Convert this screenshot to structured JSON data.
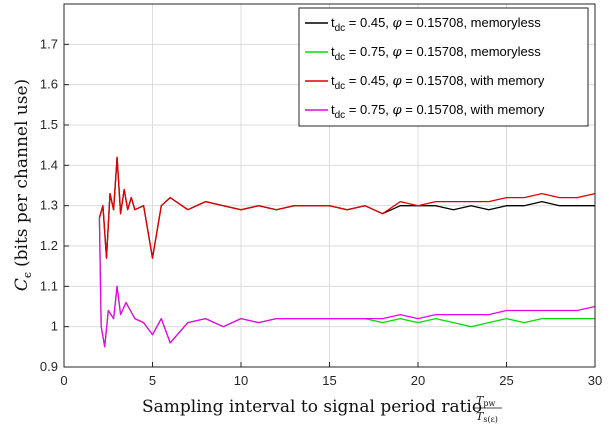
{
  "chart_data": {
    "type": "line",
    "title": "",
    "xlabel": "Sampling interval to signal period ratio",
    "xlabel_fraction": {
      "numerator": "T",
      "numerator_sub": "pw",
      "denominator": "T",
      "denominator_sub": "s(ε)"
    },
    "ylabel": "C",
    "ylabel_sub": "ϵ",
    "ylabel_rest": "(bits per channel use)",
    "xlim": [
      0,
      30
    ],
    "ylim": [
      0.9,
      1.8
    ],
    "xticks": [
      0,
      5,
      10,
      15,
      20,
      25,
      30
    ],
    "xtick_labels": [
      "0",
      "5",
      "10",
      "15",
      "20",
      "25",
      "30"
    ],
    "yticks": [
      0.9,
      1.0,
      1.1,
      1.2,
      1.3,
      1.4,
      1.5,
      1.6,
      1.7
    ],
    "ytick_labels": [
      "0.9",
      "1",
      "1.1",
      "1.2",
      "1.3",
      "1.4",
      "1.5",
      "1.6",
      "1.7"
    ],
    "grid": true,
    "legend_position": "top-right",
    "series": [
      {
        "name": "t_dc = 0.45, φ = 0.15708, memoryless",
        "legend": {
          "t": "t",
          "sub": "dc",
          "eq1": " = 0.45, ",
          "phi": "φ",
          "rest": " = 0.15708, memoryless"
        },
        "color": "#000000",
        "x": [
          2.0,
          2.2,
          2.4,
          2.6,
          2.8,
          3.0,
          3.2,
          3.4,
          3.6,
          3.8,
          4.0,
          4.5,
          5.0,
          5.5,
          6.0,
          7.0,
          8.0,
          9.0,
          10.0,
          11.0,
          12.0,
          13.0,
          14.0,
          15.0,
          16.0,
          17.0,
          18.0,
          19.0,
          20.0,
          21.0,
          22.0,
          23.0,
          24.0,
          25.0,
          26.0,
          27.0,
          28.0,
          29.0,
          30.0
        ],
        "y": [
          1.27,
          1.3,
          1.17,
          1.33,
          1.29,
          1.42,
          1.28,
          1.34,
          1.29,
          1.32,
          1.29,
          1.3,
          1.17,
          1.3,
          1.32,
          1.29,
          1.31,
          1.3,
          1.29,
          1.3,
          1.29,
          1.3,
          1.3,
          1.3,
          1.29,
          1.3,
          1.28,
          1.3,
          1.3,
          1.3,
          1.29,
          1.3,
          1.29,
          1.3,
          1.3,
          1.31,
          1.3,
          1.3,
          1.3
        ]
      },
      {
        "name": "t_dc = 0.75, φ = 0.15708, memoryless",
        "legend": {
          "t": "t",
          "sub": "dc",
          "eq1": " = 0.75, ",
          "phi": "φ",
          "rest": " = 0.15708, memoryless"
        },
        "color": "#00dd00",
        "x": [
          2.0,
          2.1,
          2.3,
          2.5,
          2.8,
          3.0,
          3.2,
          3.5,
          4.0,
          4.5,
          5.0,
          5.5,
          6.0,
          7.0,
          8.0,
          9.0,
          10.0,
          11.0,
          12.0,
          13.0,
          14.0,
          15.0,
          16.0,
          17.0,
          18.0,
          19.0,
          20.0,
          21.0,
          22.0,
          23.0,
          24.0,
          25.0,
          26.0,
          27.0,
          28.0,
          29.0,
          30.0
        ],
        "y": [
          1.27,
          1.0,
          0.95,
          1.04,
          1.02,
          1.1,
          1.03,
          1.06,
          1.02,
          1.01,
          0.98,
          1.02,
          0.96,
          1.01,
          1.02,
          1.0,
          1.02,
          1.01,
          1.02,
          1.02,
          1.02,
          1.02,
          1.02,
          1.02,
          1.01,
          1.02,
          1.01,
          1.02,
          1.01,
          1.0,
          1.01,
          1.02,
          1.01,
          1.02,
          1.02,
          1.02,
          1.02
        ]
      },
      {
        "name": "t_dc = 0.45, φ = 0.15708, with memory",
        "legend": {
          "t": "t",
          "sub": "dc",
          "eq1": " = 0.45, ",
          "phi": "φ",
          "rest": " = 0.15708, with memory"
        },
        "color": "#e00000",
        "x": [
          2.0,
          2.2,
          2.4,
          2.6,
          2.8,
          3.0,
          3.2,
          3.4,
          3.6,
          3.8,
          4.0,
          4.5,
          5.0,
          5.5,
          6.0,
          7.0,
          8.0,
          9.0,
          10.0,
          11.0,
          12.0,
          13.0,
          14.0,
          15.0,
          16.0,
          17.0,
          18.0,
          19.0,
          20.0,
          21.0,
          22.0,
          23.0,
          24.0,
          25.0,
          26.0,
          27.0,
          28.0,
          29.0,
          30.0
        ],
        "y": [
          1.27,
          1.3,
          1.17,
          1.33,
          1.29,
          1.42,
          1.28,
          1.34,
          1.29,
          1.32,
          1.29,
          1.3,
          1.17,
          1.3,
          1.32,
          1.29,
          1.31,
          1.3,
          1.29,
          1.3,
          1.29,
          1.3,
          1.3,
          1.3,
          1.29,
          1.3,
          1.28,
          1.31,
          1.3,
          1.31,
          1.31,
          1.31,
          1.31,
          1.32,
          1.32,
          1.33,
          1.32,
          1.32,
          1.33
        ]
      },
      {
        "name": "t_dc = 0.75, φ = 0.15708, with memory",
        "legend": {
          "t": "t",
          "sub": "dc",
          "eq1": " = 0.75, ",
          "phi": "φ",
          "rest": " = 0.15708, with memory"
        },
        "color": "#ee00ee",
        "x": [
          2.0,
          2.1,
          2.3,
          2.5,
          2.8,
          3.0,
          3.2,
          3.5,
          4.0,
          4.5,
          5.0,
          5.5,
          6.0,
          7.0,
          8.0,
          9.0,
          10.0,
          11.0,
          12.0,
          13.0,
          14.0,
          15.0,
          16.0,
          17.0,
          18.0,
          19.0,
          20.0,
          21.0,
          22.0,
          23.0,
          24.0,
          25.0,
          26.0,
          27.0,
          28.0,
          29.0,
          30.0
        ],
        "y": [
          1.27,
          1.0,
          0.95,
          1.04,
          1.02,
          1.1,
          1.03,
          1.06,
          1.02,
          1.01,
          0.98,
          1.02,
          0.96,
          1.01,
          1.02,
          1.0,
          1.02,
          1.01,
          1.02,
          1.02,
          1.02,
          1.02,
          1.02,
          1.02,
          1.02,
          1.03,
          1.02,
          1.03,
          1.03,
          1.03,
          1.03,
          1.04,
          1.04,
          1.04,
          1.04,
          1.04,
          1.05
        ]
      }
    ]
  }
}
